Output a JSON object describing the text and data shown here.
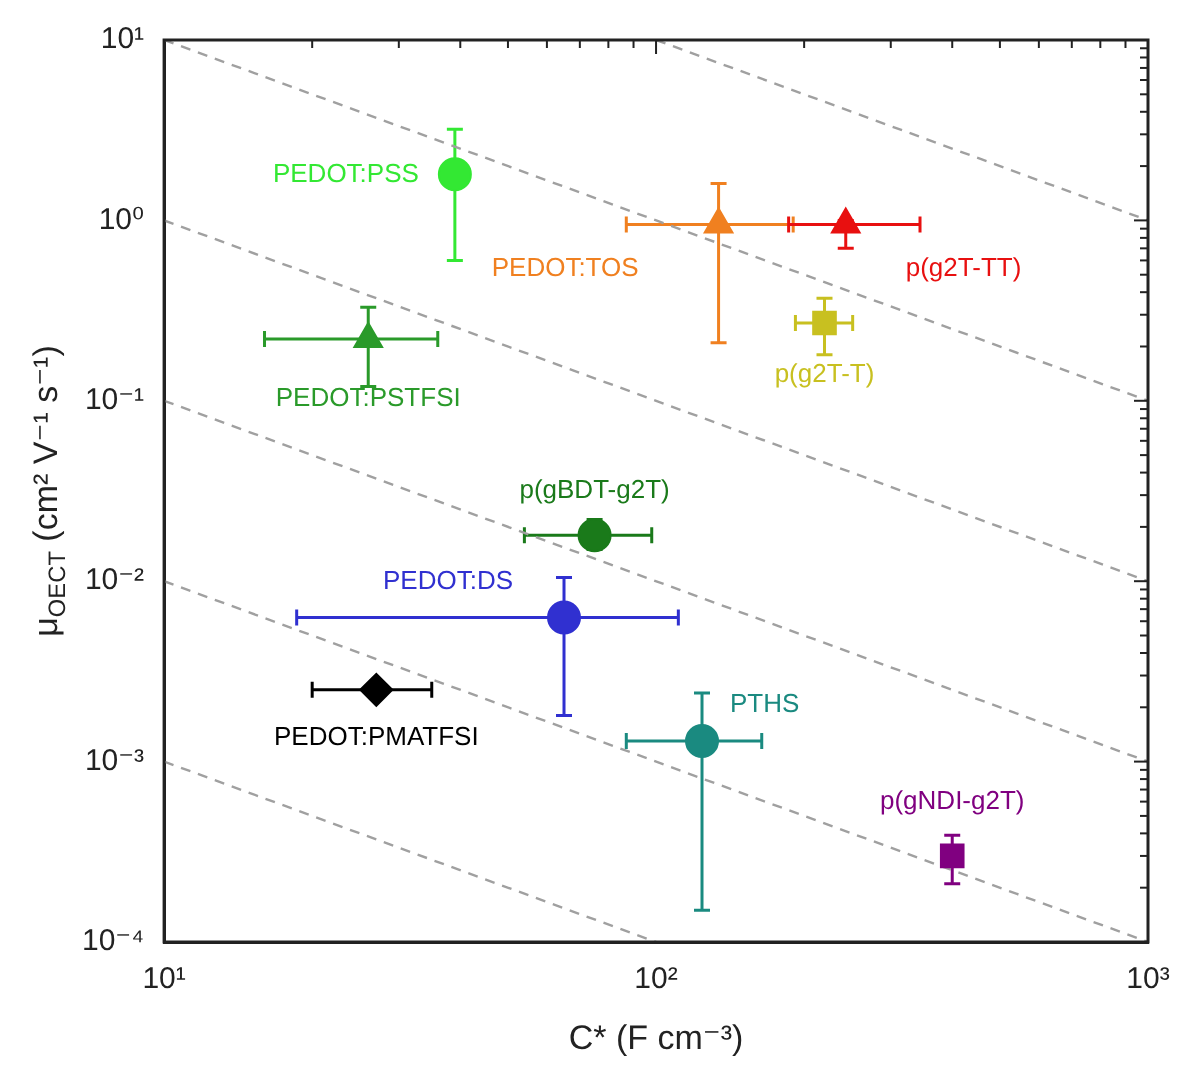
{
  "chart_data": {
    "type": "scatter",
    "xlabel": "C* (F cm⁻³)",
    "ylabel": "μ$_{OECT}$ (cm² V⁻¹ s⁻¹)",
    "log": "xy",
    "grid": false,
    "legend": false,
    "xlim": [
      10,
      1000
    ],
    "ylim": [
      0.0001,
      10
    ],
    "xticks": [
      {
        "value": 10,
        "label": "10¹"
      },
      {
        "value": 20,
        "label": null
      },
      {
        "value": 30,
        "label": null
      },
      {
        "value": 40,
        "label": null
      },
      {
        "value": 50,
        "label": null
      },
      {
        "value": 60,
        "label": null
      },
      {
        "value": 70,
        "label": null
      },
      {
        "value": 80,
        "label": null
      },
      {
        "value": 90,
        "label": null
      },
      {
        "value": 100,
        "label": "10²"
      },
      {
        "value": 200,
        "label": null
      },
      {
        "value": 300,
        "label": null
      },
      {
        "value": 400,
        "label": null
      },
      {
        "value": 500,
        "label": null
      },
      {
        "value": 600,
        "label": null
      },
      {
        "value": 700,
        "label": null
      },
      {
        "value": 800,
        "label": null
      },
      {
        "value": 900,
        "label": null
      },
      {
        "value": 1000,
        "label": "10³"
      }
    ],
    "yticks": [
      {
        "value": 0.0001,
        "label": "10⁻⁴"
      },
      {
        "value": 0.0002,
        "label": null
      },
      {
        "value": 0.0003,
        "label": null
      },
      {
        "value": 0.0004,
        "label": null
      },
      {
        "value": 0.0005,
        "label": null
      },
      {
        "value": 0.0006,
        "label": null
      },
      {
        "value": 0.0007,
        "label": null
      },
      {
        "value": 0.0008,
        "label": null
      },
      {
        "value": 0.0009,
        "label": null
      },
      {
        "value": 0.001,
        "label": "10⁻³"
      },
      {
        "value": 0.002,
        "label": null
      },
      {
        "value": 0.003,
        "label": null
      },
      {
        "value": 0.004,
        "label": null
      },
      {
        "value": 0.005,
        "label": null
      },
      {
        "value": 0.006,
        "label": null
      },
      {
        "value": 0.007,
        "label": null
      },
      {
        "value": 0.008,
        "label": null
      },
      {
        "value": 0.009,
        "label": null
      },
      {
        "value": 0.01,
        "label": "10⁻²"
      },
      {
        "value": 0.02,
        "label": null
      },
      {
        "value": 0.03,
        "label": null
      },
      {
        "value": 0.04,
        "label": null
      },
      {
        "value": 0.05,
        "label": null
      },
      {
        "value": 0.06,
        "label": null
      },
      {
        "value": 0.07,
        "label": null
      },
      {
        "value": 0.08,
        "label": null
      },
      {
        "value": 0.09,
        "label": null
      },
      {
        "value": 0.1,
        "label": "10⁻¹"
      },
      {
        "value": 0.2,
        "label": null
      },
      {
        "value": 0.3,
        "label": null
      },
      {
        "value": 0.4,
        "label": null
      },
      {
        "value": 0.5,
        "label": null
      },
      {
        "value": 0.6,
        "label": null
      },
      {
        "value": 0.7,
        "label": null
      },
      {
        "value": 0.8,
        "label": null
      },
      {
        "value": 0.9,
        "label": null
      },
      {
        "value": 1,
        "label": "10⁰"
      },
      {
        "value": 2,
        "label": null
      },
      {
        "value": 3,
        "label": null
      },
      {
        "value": 4,
        "label": null
      },
      {
        "value": 5,
        "label": null
      },
      {
        "value": 6,
        "label": null
      },
      {
        "value": 7,
        "label": null
      },
      {
        "value": 8,
        "label": null
      },
      {
        "value": 9,
        "label": null
      },
      {
        "value": 10,
        "label": "10¹"
      }
    ],
    "series": [
      {
        "type": "line",
        "line_style": "dashed",
        "marker": "none",
        "color": "#a0a0a0",
        "x": [
          100,
          1000
        ],
        "values": [
          10,
          1
        ]
      },
      {
        "type": "line",
        "line_style": "dashed",
        "marker": "none",
        "color": "#a0a0a0",
        "x": [
          10,
          1000
        ],
        "values": [
          10,
          0.1
        ]
      },
      {
        "type": "line",
        "line_style": "dashed",
        "marker": "none",
        "color": "#a0a0a0",
        "x": [
          10,
          1000
        ],
        "values": [
          1,
          0.01
        ]
      },
      {
        "type": "line",
        "line_style": "dashed",
        "marker": "none",
        "color": "#a0a0a0",
        "x": [
          10,
          1000
        ],
        "values": [
          0.1,
          0.001
        ]
      },
      {
        "type": "line",
        "line_style": "dashed",
        "marker": "none",
        "color": "#a0a0a0",
        "x": [
          10,
          1000
        ],
        "values": [
          0.01,
          0.0001
        ]
      },
      {
        "type": "line",
        "line_style": "dashed",
        "marker": "none",
        "color": "#a0a0a0",
        "x": [
          10,
          100
        ],
        "values": [
          0.001,
          0.0001
        ]
      },
      {
        "name": "PEDOT:PSS",
        "marker": "circle",
        "color": "#33e833",
        "x": [
          39
        ],
        "values": [
          1.8
        ],
        "errors": [
          [
            0.6,
            3.2
          ]
        ]
      },
      {
        "name": "PEDOT:PSTFSI",
        "marker": "triangle",
        "color": "#2a9a2a",
        "x": [
          26
        ],
        "values": [
          0.22
        ],
        "errors": [
          [
            0.12,
            0.33
          ]
        ],
        "xerrors": [
          [
            16,
            36
          ]
        ]
      },
      {
        "name": "PEDOT:TOS",
        "marker": "triangle",
        "color": "#f08020",
        "x": [
          134
        ],
        "values": [
          0.95
        ],
        "errors": [
          [
            0.21,
            1.6
          ]
        ],
        "xerrors": [
          [
            87,
            190
          ]
        ]
      },
      {
        "name": "p(g2T-TT)",
        "marker": "triangle",
        "color": "#e81010",
        "x": [
          243
        ],
        "values": [
          0.95
        ],
        "errors": [
          [
            0.7,
            1
          ]
        ],
        "xerrors": [
          [
            186,
            344
          ]
        ]
      },
      {
        "name": "p(g2T-T)",
        "marker": "square",
        "color": "#c8c020",
        "x": [
          220
        ],
        "values": [
          0.27
        ],
        "errors": [
          [
            0.18,
            0.37
          ]
        ],
        "xerrors": [
          [
            192,
            251
          ]
        ]
      },
      {
        "name": "p(gBDT-g2T)",
        "marker": "circle",
        "color": "#1a7a1a",
        "x": [
          75
        ],
        "values": [
          0.018
        ],
        "errors": [
          [
            0.015,
            0.022
          ]
        ],
        "xerrors": [
          [
            54,
            98
          ]
        ]
      },
      {
        "name": "PEDOT:DS",
        "marker": "circle",
        "color": "#3030d0",
        "x": [
          65
        ],
        "values": [
          0.0063
        ],
        "errors": [
          [
            0.0018,
            0.0105
          ]
        ],
        "xerrors": [
          [
            18.6,
            111
          ]
        ]
      },
      {
        "name": "PEDOT:PMATFSI",
        "marker": "diamond",
        "color": "#000000",
        "x": [
          27
        ],
        "values": [
          0.0025
        ],
        "xerrors": [
          [
            20,
            35
          ]
        ]
      },
      {
        "name": "PTHS",
        "marker": "circle",
        "color": "#1a8a80",
        "x": [
          124
        ],
        "values": [
          0.0013
        ],
        "errors": [
          [
            0.00015,
            0.0024
          ]
        ],
        "xerrors": [
          [
            87,
            164
          ]
        ]
      },
      {
        "name": "p(gNDI-g2T)",
        "marker": "square",
        "color": "#800080",
        "x": [
          400
        ],
        "values": [
          0.0003
        ],
        "errors": [
          [
            0.00021,
            0.00039
          ]
        ]
      }
    ]
  }
}
